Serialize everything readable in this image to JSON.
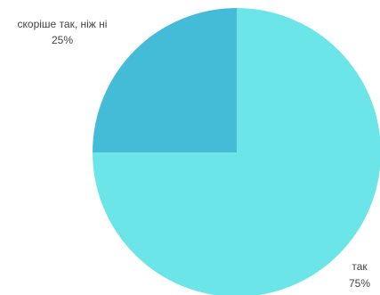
{
  "chart_data": {
    "type": "pie",
    "slices": [
      {
        "label": "так",
        "value": 75,
        "percent_label": "75%",
        "color": "#6ce5e8"
      },
      {
        "label": "скоріше так, ніж ні",
        "value": 25,
        "percent_label": "25%",
        "color": "#44bcd8"
      }
    ],
    "legend": "none"
  }
}
